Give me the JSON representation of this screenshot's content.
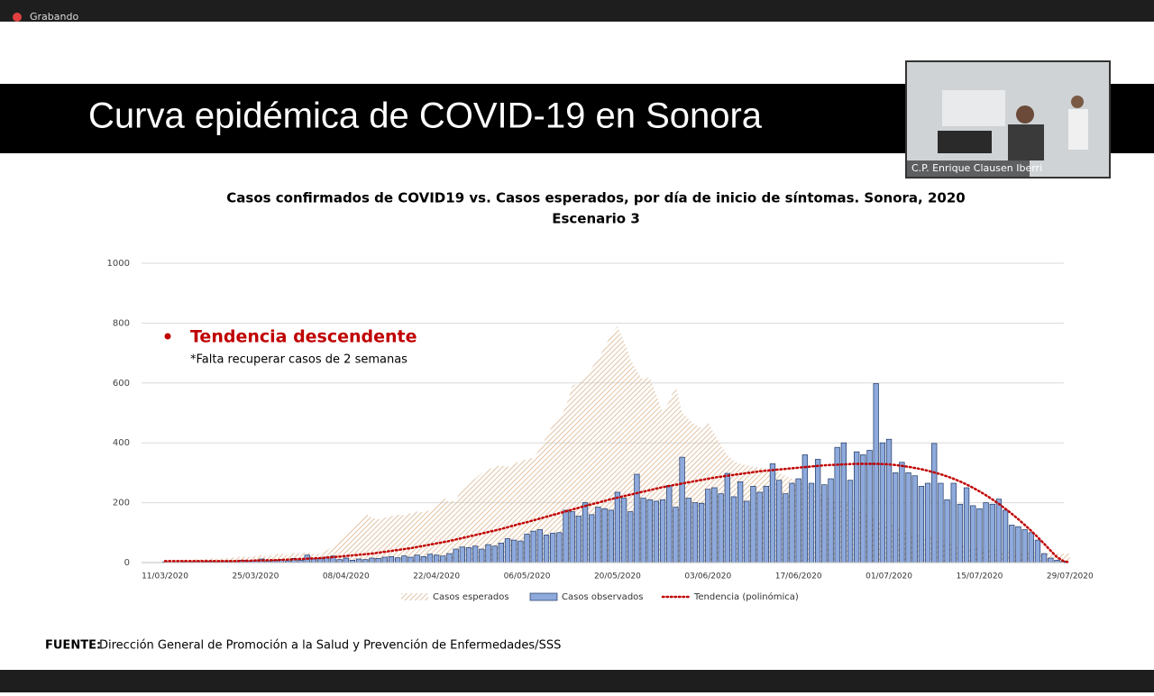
{
  "app": {
    "recording_label": "Grabando",
    "participant_name": "C.P. Enrique Clausen Iberri"
  },
  "slide": {
    "title": "Curva epidémica de COVID-19 en Sonora",
    "source_label": "FUENTE:",
    "source_text": "Dirección General de Promoción a la Salud y Prevención de Enfermedades/SSS"
  },
  "chart_data": {
    "type": "bar",
    "title": [
      "Casos confirmados de COVID19 vs. Casos esperados, por día de inicio de síntomas. Sonora, 2020",
      "Escenario 3"
    ],
    "annotations": [
      "Tendencia descendente",
      "*Falta recuperar casos de 2 semanas"
    ],
    "ylim": [
      0,
      1000
    ],
    "yticks": [
      0,
      200,
      400,
      600,
      800,
      1000
    ],
    "grid": true,
    "categories": [
      "11/03/2020",
      null,
      null,
      null,
      null,
      null,
      null,
      null,
      null,
      null,
      null,
      null,
      null,
      null,
      "25/03/2020",
      null,
      null,
      null,
      null,
      null,
      null,
      null,
      null,
      null,
      null,
      null,
      null,
      null,
      "08/04/2020",
      null,
      null,
      null,
      null,
      null,
      null,
      null,
      null,
      null,
      null,
      null,
      null,
      null,
      "22/04/2020",
      null,
      null,
      null,
      null,
      null,
      null,
      null,
      null,
      null,
      null,
      null,
      null,
      null,
      "06/05/2020",
      null,
      null,
      null,
      null,
      null,
      null,
      null,
      null,
      null,
      null,
      null,
      null,
      null,
      "20/05/2020",
      null,
      null,
      null,
      null,
      null,
      null,
      null,
      null,
      null,
      null,
      null,
      null,
      null,
      "03/06/2020",
      null,
      null,
      null,
      null,
      null,
      null,
      null,
      null,
      null,
      null,
      null,
      null,
      null,
      "17/06/2020",
      null,
      null,
      null,
      null,
      null,
      null,
      null,
      null,
      null,
      null,
      null,
      null,
      null,
      "01/07/2020",
      null,
      null,
      null,
      null,
      null,
      null,
      null,
      null,
      null,
      null,
      null,
      null,
      null,
      "15/07/2020",
      null,
      null,
      null,
      null,
      null,
      null,
      null,
      null,
      null,
      null,
      null,
      null,
      null,
      "29/07/2020"
    ],
    "series": [
      {
        "name": "Casos esperados",
        "type": "area",
        "color": "#d9b48f",
        "values": [
          5,
          6,
          8,
          10,
          8,
          12,
          10,
          15,
          12,
          14,
          15,
          18,
          20,
          18,
          22,
          25,
          20,
          28,
          30,
          25,
          32,
          30,
          35,
          28,
          30,
          40,
          55,
          80,
          100,
          120,
          140,
          165,
          150,
          145,
          150,
          155,
          160,
          158,
          165,
          170,
          168,
          175,
          190,
          220,
          200,
          210,
          250,
          270,
          280,
          300,
          310,
          320,
          325,
          320,
          330,
          340,
          345,
          350,
          380,
          420,
          460,
          480,
          520,
          590,
          600,
          620,
          650,
          680,
          720,
          760,
          790,
          740,
          680,
          640,
          610,
          620,
          560,
          500,
          540,
          590,
          500,
          480,
          460,
          450,
          470,
          430,
          390,
          360,
          340,
          330,
          325,
          320,
          318,
          315,
          310,
          300,
          290,
          280,
          270,
          260,
          250,
          240,
          230,
          220,
          210,
          200,
          190,
          180,
          170,
          160,
          150,
          140,
          130,
          120,
          110,
          100,
          95,
          90,
          85,
          80,
          75,
          70,
          65,
          60,
          55,
          50,
          48,
          46,
          44,
          42,
          40,
          38,
          36,
          35,
          34,
          33,
          32,
          31,
          30,
          30,
          30
        ]
      },
      {
        "name": "Casos observados",
        "type": "bar",
        "color": "#8ea9db",
        "values": [
          2,
          0,
          1,
          3,
          2,
          4,
          3,
          5,
          2,
          4,
          6,
          5,
          8,
          4,
          6,
          12,
          5,
          8,
          10,
          6,
          14,
          8,
          25,
          12,
          15,
          18,
          22,
          10,
          15,
          8,
          12,
          10,
          15,
          14,
          18,
          20,
          16,
          22,
          18,
          25,
          20,
          28,
          25,
          22,
          30,
          45,
          52,
          50,
          55,
          45,
          60,
          55,
          65,
          80,
          75,
          72,
          95,
          105,
          110,
          92,
          98,
          100,
          175,
          170,
          155,
          200,
          160,
          185,
          180,
          175,
          235,
          215,
          170,
          295,
          215,
          210,
          205,
          210,
          258,
          185,
          352,
          215,
          200,
          198,
          245,
          250,
          230,
          298,
          220,
          270,
          205,
          255,
          235,
          255,
          330,
          275,
          230,
          265,
          280,
          360,
          265,
          345,
          260,
          280,
          385,
          400,
          275,
          370,
          360,
          375,
          598,
          400,
          412,
          300,
          335,
          300,
          290,
          255,
          265,
          398,
          265,
          210,
          265,
          195,
          250,
          190,
          180,
          200,
          195,
          212,
          175,
          125,
          120,
          110,
          100,
          75,
          30,
          15,
          8,
          5,
          0
        ]
      },
      {
        "name": "Tendencia (polinómica)",
        "type": "line",
        "color": "#c00000",
        "values": [
          5,
          5,
          5,
          5,
          5,
          5,
          5,
          5,
          5,
          5,
          5,
          5,
          6,
          6,
          7,
          7,
          8,
          8,
          9,
          10,
          11,
          12,
          13,
          14,
          15,
          17,
          18,
          20,
          22,
          24,
          26,
          28,
          30,
          33,
          36,
          39,
          42,
          45,
          48,
          52,
          56,
          60,
          64,
          68,
          72,
          77,
          82,
          87,
          92,
          97,
          102,
          107,
          112,
          118,
          124,
          130,
          135,
          141,
          147,
          153,
          159,
          165,
          171,
          177,
          183,
          189,
          195,
          200,
          206,
          212,
          217,
          222,
          227,
          232,
          237,
          242,
          247,
          252,
          256,
          260,
          264,
          268,
          272,
          276,
          280,
          284,
          287,
          290,
          293,
          296,
          299,
          302,
          305,
          307,
          309,
          311,
          313,
          315,
          317,
          319,
          321,
          323,
          325,
          326,
          327,
          328,
          329,
          330,
          330,
          330,
          330,
          329,
          328,
          326,
          323,
          320,
          316,
          312,
          307,
          301,
          295,
          288,
          280,
          271,
          261,
          250,
          238,
          225,
          211,
          196,
          180,
          163,
          145,
          126,
          106,
          85,
          63,
          40,
          18,
          5,
          0
        ]
      }
    ]
  }
}
